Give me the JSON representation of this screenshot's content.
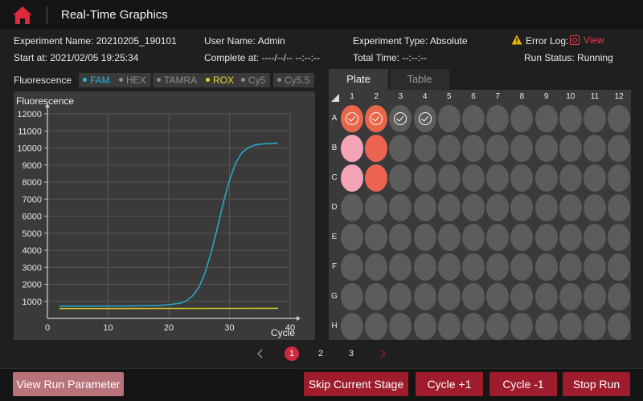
{
  "header": {
    "title": "Real-Time Graphics"
  },
  "info": {
    "experiment_name": "Experiment Name: 20210205_190101",
    "start_at": "Start at:  2021/02/05 19:25:34",
    "user_name": "User Name: Admin",
    "complete_at": "Complete at: ----/--/-- --:--:--",
    "experiment_type": "Experiment Type: Absolute",
    "total_time": "Total Time: --:--:--",
    "error_log_label": "Error Log:",
    "error_log_view": "View",
    "run_status": "Run Status: Running"
  },
  "channels": {
    "label": "Fluorescence",
    "items": [
      {
        "label": "FAM",
        "state": "active",
        "color": "#2ab0e0"
      },
      {
        "label": "HEX",
        "state": "inactive"
      },
      {
        "label": "TAMRA",
        "state": "inactive"
      },
      {
        "label": "ROX",
        "state": "active",
        "color": "#e6d52d"
      },
      {
        "label": "Cy5",
        "state": "inactive"
      },
      {
        "label": "Cy5.5",
        "state": "inactive"
      }
    ]
  },
  "chart_data": {
    "type": "line",
    "title": "Fluorescence",
    "xlabel": "Cycle",
    "ylabel": "",
    "xlim": [
      0,
      40
    ],
    "ylim": [
      0,
      12000
    ],
    "x_ticks": [
      "0",
      "10",
      "20",
      "30",
      "40"
    ],
    "y_ticks": [
      "1000",
      "2000",
      "3000",
      "4000",
      "5000",
      "6000",
      "7000",
      "8000",
      "9000",
      "10000",
      "11000",
      "12000"
    ],
    "grid": true,
    "series": [
      {
        "color": "#2aa7c9",
        "x": [
          2,
          6,
          10,
          14,
          18,
          20,
          22,
          23,
          24,
          25,
          26,
          27,
          28,
          29,
          30,
          31,
          32,
          33,
          34,
          35,
          36,
          37,
          38
        ],
        "y": [
          720,
          720,
          725,
          730,
          760,
          800,
          900,
          1050,
          1350,
          1850,
          2700,
          3900,
          5300,
          6800,
          8100,
          9100,
          9700,
          10000,
          10150,
          10220,
          10250,
          10270,
          10280
        ]
      },
      {
        "color": "#d4c52a",
        "x": [
          2,
          10,
          20,
          30,
          38
        ],
        "y": [
          580,
          580,
          585,
          590,
          595
        ]
      }
    ]
  },
  "tabs": [
    {
      "label": "Plate",
      "active": true
    },
    {
      "label": "Table",
      "active": false
    }
  ],
  "plate": {
    "columns": [
      "1",
      "2",
      "3",
      "4",
      "5",
      "6",
      "7",
      "8",
      "9",
      "10",
      "11",
      "12"
    ],
    "rows": [
      "A",
      "B",
      "C",
      "D",
      "E",
      "F",
      "G",
      "H"
    ],
    "well_colors": {
      "empty": "#5c5c5c",
      "selected": "#e8664a",
      "pink": "#f4a4b6",
      "orange": "#ec6450"
    },
    "wells": {
      "A1": "selected-check",
      "A2": "selected-check",
      "A3": "check",
      "A4": "check",
      "B1": "pink",
      "B2": "orange",
      "C1": "pink",
      "C2": "orange"
    }
  },
  "pagination": {
    "pages": [
      "1",
      "2",
      "3"
    ],
    "current": "1"
  },
  "buttons": {
    "view_run_parameter": "View Run Parameter",
    "skip_current_stage": "Skip Current Stage",
    "cycle_plus": "Cycle +1",
    "cycle_minus": "Cycle -1",
    "stop_run": "Stop Run"
  }
}
